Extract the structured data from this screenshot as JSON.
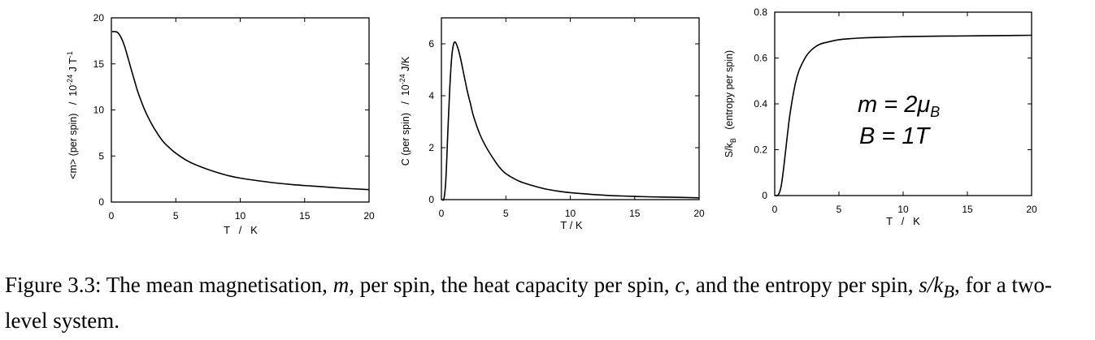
{
  "chart_data": [
    {
      "type": "line",
      "title": "",
      "xlabel": "T   /   K",
      "ylabel": "<m> (per spin)   /  10",
      "ylabel_sup": "-24",
      "ylabel_unit": " J T",
      "ylabel_unit_sup": "-1",
      "xlim": [
        0,
        20
      ],
      "ylim": [
        0,
        20
      ],
      "xticks": [
        0,
        5,
        10,
        15,
        20
      ],
      "yticks": [
        0,
        5,
        10,
        15,
        20
      ],
      "grid": false,
      "series": [
        {
          "x": [
            0.05,
            0.3,
            0.5,
            0.7,
            0.9,
            1.1,
            1.3,
            1.5,
            1.75,
            2,
            2.25,
            2.5,
            2.75,
            3,
            3.5,
            4,
            4.5,
            5,
            6,
            7,
            8,
            9,
            10,
            12,
            14,
            16,
            18,
            20
          ],
          "y": [
            18.5,
            18.5,
            18.4,
            18.0,
            17.4,
            16.6,
            15.6,
            14.6,
            13.4,
            12.2,
            11.2,
            10.3,
            9.5,
            8.8,
            7.6,
            6.6,
            5.9,
            5.3,
            4.4,
            3.8,
            3.3,
            2.9,
            2.6,
            2.2,
            1.9,
            1.7,
            1.5,
            1.35
          ]
        }
      ]
    },
    {
      "type": "line",
      "title": "",
      "xlabel": "T / K",
      "ylabel": "C (per spin)   /  10",
      "ylabel_sup": "-24",
      "ylabel_unit": " J/K",
      "xlim": [
        0,
        20
      ],
      "ylim": [
        0,
        7
      ],
      "xticks": [
        0,
        5,
        10,
        15,
        20
      ],
      "yticks": [
        0,
        2,
        4,
        6
      ],
      "grid": false,
      "series": [
        {
          "x": [
            0.05,
            0.2,
            0.35,
            0.5,
            0.65,
            0.8,
            0.95,
            1.1,
            1.3,
            1.5,
            1.75,
            2,
            2.25,
            2.5,
            3,
            3.5,
            4,
            4.5,
            5,
            6,
            7,
            8,
            9,
            10,
            12,
            14,
            16,
            18,
            20
          ],
          "y": [
            0.0,
            0.05,
            0.8,
            2.6,
            4.3,
            5.5,
            6.0,
            6.05,
            5.8,
            5.4,
            4.8,
            4.2,
            3.7,
            3.2,
            2.5,
            2.0,
            1.6,
            1.25,
            1.0,
            0.72,
            0.55,
            0.42,
            0.33,
            0.27,
            0.19,
            0.14,
            0.11,
            0.09,
            0.07
          ]
        }
      ]
    },
    {
      "type": "line",
      "title": "",
      "xlabel": "T   /   K",
      "ylabel": "S/k",
      "ylabel_sub": "B",
      "ylabel_rest": "   (entropy per spin)",
      "xlim": [
        0,
        20
      ],
      "ylim": [
        0,
        0.8
      ],
      "xticks": [
        0,
        5,
        10,
        15,
        20
      ],
      "yticks": [
        0,
        0.2,
        0.4,
        0.6,
        0.8
      ],
      "grid": false,
      "series": [
        {
          "x": [
            0.05,
            0.2,
            0.35,
            0.5,
            0.65,
            0.8,
            1.0,
            1.2,
            1.5,
            1.75,
            2,
            2.5,
            3,
            3.5,
            4,
            5,
            6,
            7,
            8,
            10,
            12,
            14,
            16,
            18,
            20
          ],
          "y": [
            0.0,
            0.0,
            0.01,
            0.04,
            0.1,
            0.17,
            0.27,
            0.36,
            0.46,
            0.52,
            0.56,
            0.612,
            0.642,
            0.66,
            0.668,
            0.68,
            0.685,
            0.688,
            0.69,
            0.693,
            0.695,
            0.696,
            0.697,
            0.698,
            0.699
          ]
        }
      ]
    }
  ],
  "annotation": {
    "line1": "m = 2μ",
    "line1_sub": "B",
    "line2": "B = 1T"
  },
  "caption": {
    "prefix": "Figure 3.3:",
    "text_a": " The mean magnetisation, ",
    "var_m": "m",
    "text_b": ", per spin, the heat capacity per spin, ",
    "var_c": "c",
    "text_c": ", and the entropy per spin, ",
    "var_s": "s/k",
    "var_s_sub": "B",
    "text_d": ", for a two-level system."
  }
}
